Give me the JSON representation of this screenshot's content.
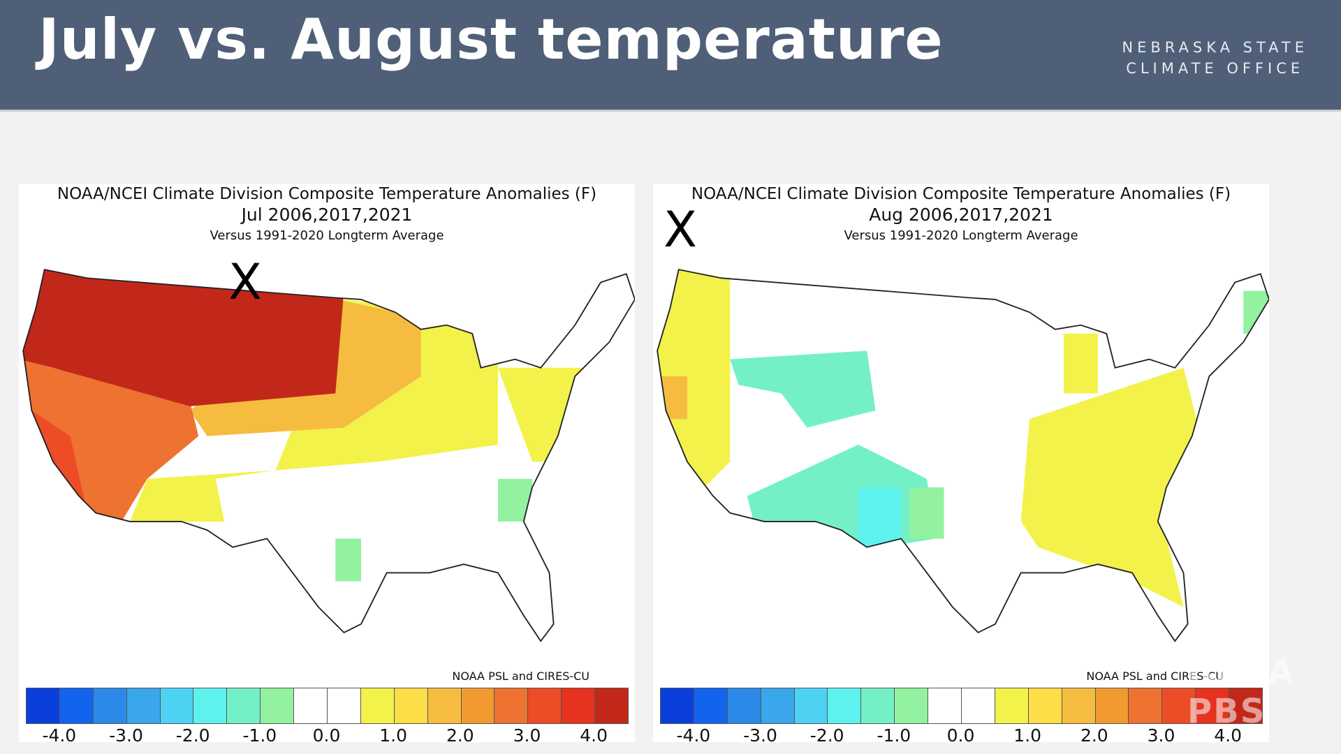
{
  "header": {
    "title": "July vs. August temperature",
    "org_line1": "NEBRASKA STATE",
    "org_line2": "CLIMATE OFFICE"
  },
  "maps": [
    {
      "title": "NOAA/NCEI Climate Division Composite Temperature Anomalies (F)",
      "period": "Jul   2006,2017,2021",
      "baseline": "Versus 1991-2020 Longterm Average",
      "credit": "NOAA PSL and CIRES-CU",
      "marker": "X"
    },
    {
      "title": "NOAA/NCEI Climate Division Composite Temperature Anomalies (F)",
      "period": "Aug   2006,2017,2021",
      "baseline": "Versus 1991-2020 Longterm Average",
      "credit": "NOAA PSL and CIRES-CU",
      "marker": "X"
    }
  ],
  "colorbar": {
    "colors": [
      "#0b3fdc",
      "#1264ec",
      "#2b8ae8",
      "#3aa6ec",
      "#4ed2f4",
      "#5ef2ee",
      "#74f0c8",
      "#92f2a0",
      "#ffffff",
      "#ffffff",
      "#f2f24a",
      "#fddd48",
      "#f6bc40",
      "#f29a30",
      "#ee7230",
      "#ec4c26",
      "#e6321e",
      "#c2281a"
    ],
    "ticks": [
      "-4.0",
      "-3.0",
      "-2.0",
      "-1.0",
      "0.0",
      "1.0",
      "2.0",
      "3.0",
      "4.0"
    ]
  },
  "watermark": "IOWA PBS"
}
